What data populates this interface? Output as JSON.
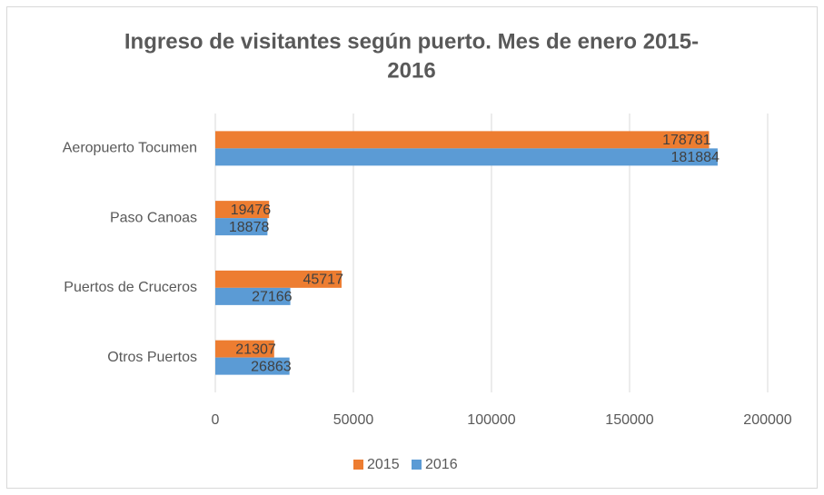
{
  "chart_data": {
    "type": "bar",
    "orientation": "horizontal",
    "title": [
      "Ingreso de visitantes según puerto. Mes de enero 2015-",
      "2016"
    ],
    "categories": [
      "Aeropuerto Tocumen",
      "Paso Canoas",
      "Puertos de Cruceros",
      "Otros Puertos"
    ],
    "series": [
      {
        "name": "2015",
        "color": "#ed7d31",
        "values": [
          178781,
          19476,
          45717,
          21307
        ]
      },
      {
        "name": "2016",
        "color": "#5b9bd5",
        "values": [
          181884,
          18878,
          27166,
          26863
        ]
      }
    ],
    "xlim": [
      0,
      200000
    ],
    "xticks": [
      0,
      50000,
      100000,
      150000,
      200000
    ],
    "grid": true,
    "legend": "bottom",
    "data_labels": true
  }
}
